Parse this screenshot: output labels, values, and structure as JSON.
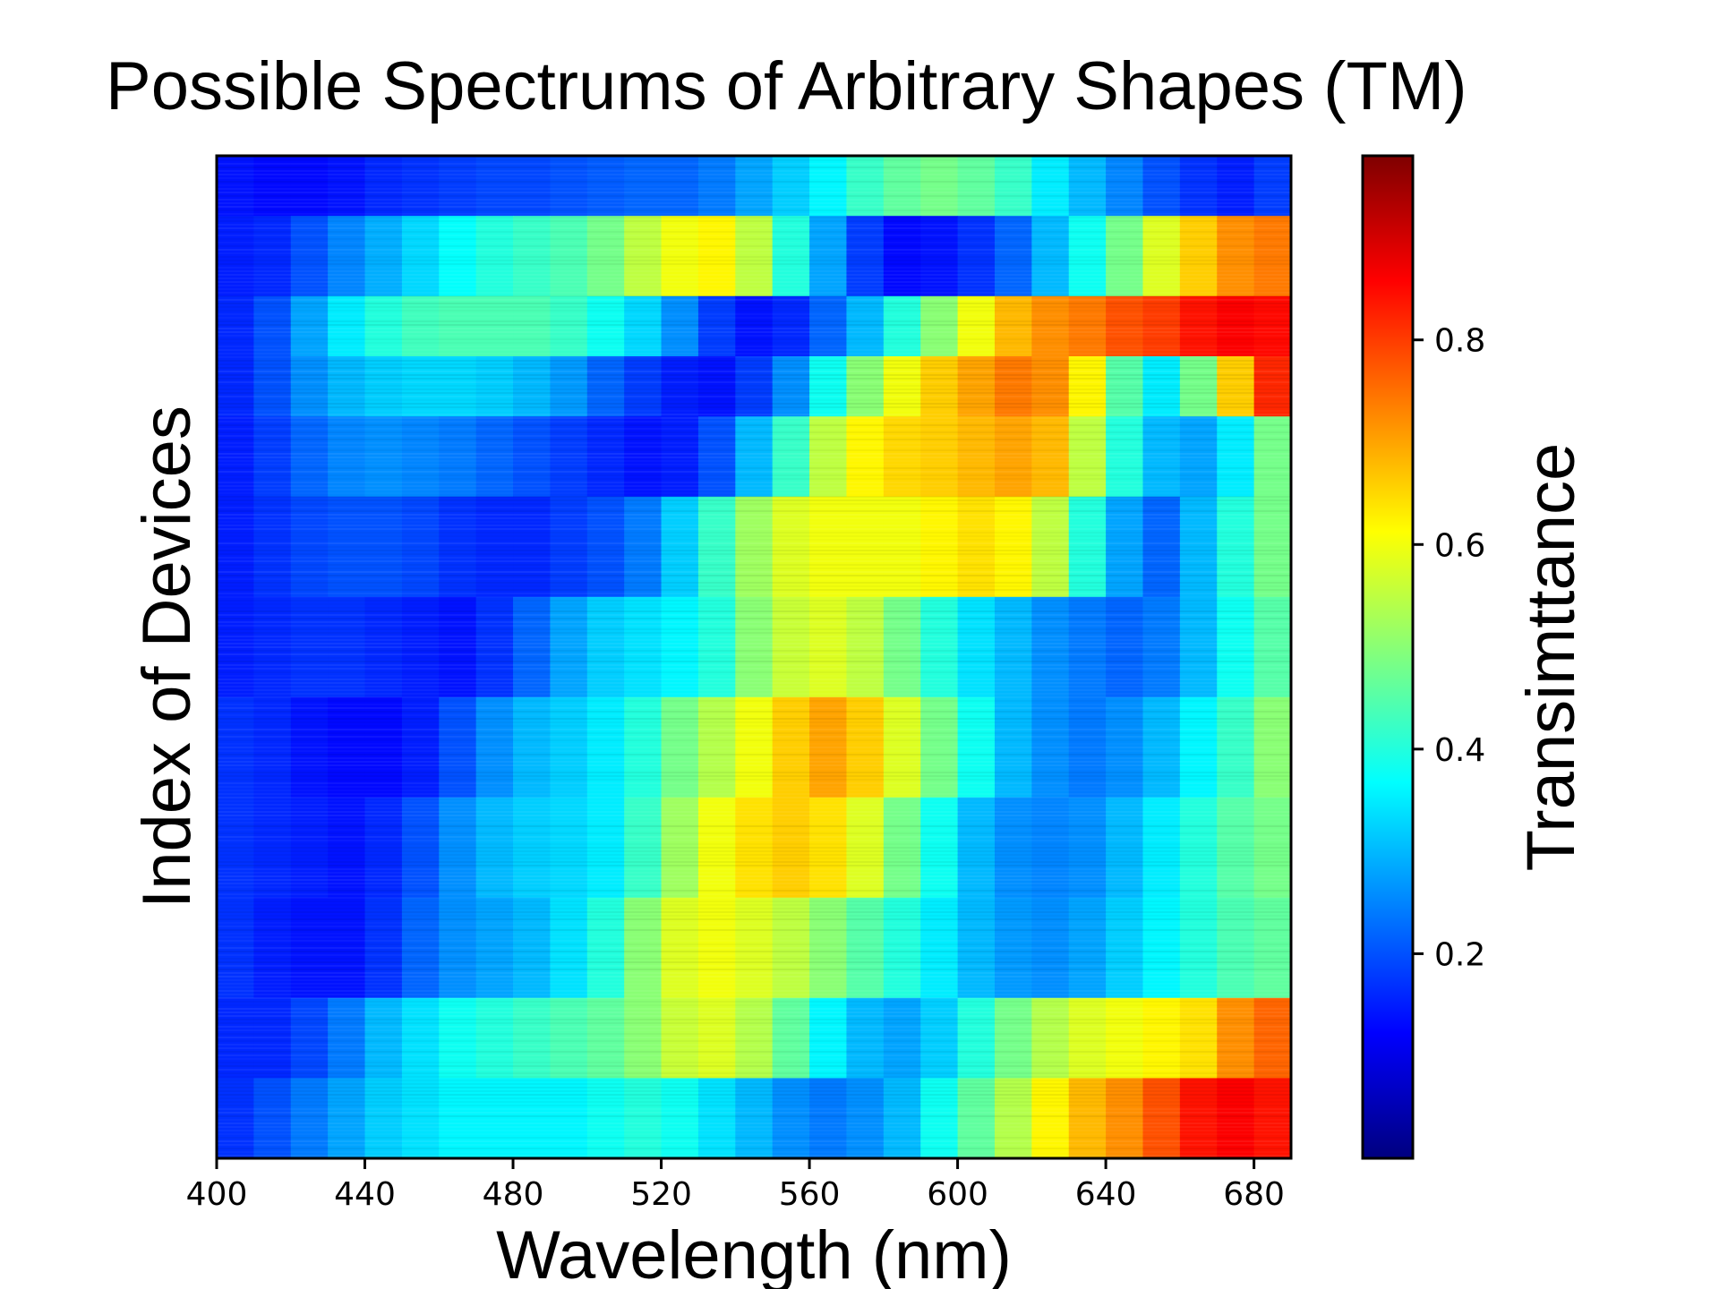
{
  "chart_data": {
    "type": "heatmap",
    "title": "Possible Spectrums of Arbitrary Shapes (TM)",
    "xlabel": "Wavelength (nm)",
    "ylabel": "Index of Devices",
    "colorbar_label": "Transimttance",
    "colormap": "jet",
    "x": [
      400,
      410,
      420,
      430,
      440,
      450,
      460,
      470,
      480,
      490,
      500,
      510,
      520,
      530,
      540,
      550,
      560,
      570,
      580,
      590,
      600,
      610,
      620,
      630,
      640,
      650,
      660,
      670,
      680
    ],
    "xlim": [
      400,
      690
    ],
    "xticks": [
      "400",
      "440",
      "480",
      "520",
      "560",
      "600",
      "640",
      "680"
    ],
    "colorbar_ticks": [
      "0.2",
      "0.4",
      "0.6",
      "0.8"
    ],
    "clim": [
      0,
      0.98
    ],
    "y_labels_shown": false,
    "bands": [
      {
        "rows": [
          0,
          3
        ],
        "values": [
          0.14,
          0.13,
          0.13,
          0.14,
          0.16,
          0.17,
          0.18,
          0.19,
          0.19,
          0.2,
          0.21,
          0.22,
          0.22,
          0.24,
          0.28,
          0.32,
          0.36,
          0.42,
          0.46,
          0.48,
          0.46,
          0.42,
          0.35,
          0.3,
          0.25,
          0.2,
          0.17,
          0.15,
          0.18
        ]
      },
      {
        "rows": [
          3,
          7
        ],
        "values": [
          0.15,
          0.16,
          0.2,
          0.25,
          0.29,
          0.33,
          0.37,
          0.4,
          0.42,
          0.44,
          0.48,
          0.55,
          0.6,
          0.62,
          0.55,
          0.4,
          0.28,
          0.18,
          0.13,
          0.14,
          0.17,
          0.22,
          0.3,
          0.38,
          0.48,
          0.58,
          0.66,
          0.72,
          0.74
        ]
      },
      {
        "rows": [
          7,
          10
        ],
        "values": [
          0.16,
          0.2,
          0.28,
          0.35,
          0.4,
          0.43,
          0.44,
          0.44,
          0.44,
          0.42,
          0.38,
          0.33,
          0.26,
          0.18,
          0.14,
          0.16,
          0.22,
          0.3,
          0.4,
          0.5,
          0.6,
          0.68,
          0.72,
          0.74,
          0.78,
          0.8,
          0.84,
          0.86,
          0.85
        ]
      },
      {
        "rows": [
          10,
          13
        ],
        "values": [
          0.16,
          0.2,
          0.26,
          0.3,
          0.32,
          0.33,
          0.33,
          0.32,
          0.3,
          0.27,
          0.22,
          0.18,
          0.15,
          0.14,
          0.18,
          0.26,
          0.38,
          0.5,
          0.6,
          0.66,
          0.7,
          0.74,
          0.72,
          0.62,
          0.45,
          0.35,
          0.48,
          0.66,
          0.82
        ]
      },
      {
        "rows": [
          13,
          17
        ],
        "values": [
          0.15,
          0.18,
          0.22,
          0.25,
          0.26,
          0.25,
          0.24,
          0.22,
          0.2,
          0.18,
          0.16,
          0.14,
          0.15,
          0.2,
          0.3,
          0.42,
          0.55,
          0.62,
          0.65,
          0.66,
          0.68,
          0.7,
          0.68,
          0.55,
          0.4,
          0.3,
          0.28,
          0.35,
          0.48
        ]
      },
      {
        "rows": [
          17,
          22
        ],
        "values": [
          0.15,
          0.17,
          0.19,
          0.2,
          0.2,
          0.19,
          0.17,
          0.16,
          0.16,
          0.18,
          0.2,
          0.24,
          0.32,
          0.42,
          0.52,
          0.58,
          0.6,
          0.6,
          0.6,
          0.62,
          0.64,
          0.62,
          0.55,
          0.4,
          0.28,
          0.22,
          0.3,
          0.4,
          0.48
        ]
      },
      {
        "rows": [
          22,
          27
        ],
        "values": [
          0.15,
          0.16,
          0.17,
          0.17,
          0.16,
          0.15,
          0.14,
          0.17,
          0.22,
          0.28,
          0.32,
          0.34,
          0.36,
          0.4,
          0.5,
          0.56,
          0.58,
          0.55,
          0.48,
          0.4,
          0.34,
          0.3,
          0.26,
          0.24,
          0.22,
          0.24,
          0.3,
          0.38,
          0.45
        ]
      },
      {
        "rows": [
          27,
          32
        ],
        "values": [
          0.17,
          0.16,
          0.14,
          0.13,
          0.13,
          0.15,
          0.2,
          0.26,
          0.3,
          0.32,
          0.35,
          0.4,
          0.48,
          0.54,
          0.6,
          0.66,
          0.7,
          0.66,
          0.58,
          0.48,
          0.38,
          0.3,
          0.26,
          0.24,
          0.26,
          0.3,
          0.36,
          0.42,
          0.5
        ]
      },
      {
        "rows": [
          32,
          37
        ],
        "values": [
          0.17,
          0.16,
          0.15,
          0.14,
          0.16,
          0.2,
          0.26,
          0.3,
          0.32,
          0.33,
          0.35,
          0.42,
          0.52,
          0.6,
          0.64,
          0.66,
          0.64,
          0.58,
          0.48,
          0.38,
          0.3,
          0.26,
          0.25,
          0.26,
          0.3,
          0.35,
          0.4,
          0.45,
          0.48
        ]
      },
      {
        "rows": [
          37,
          42
        ],
        "values": [
          0.17,
          0.15,
          0.14,
          0.14,
          0.17,
          0.22,
          0.26,
          0.28,
          0.3,
          0.34,
          0.4,
          0.5,
          0.58,
          0.6,
          0.58,
          0.55,
          0.5,
          0.45,
          0.4,
          0.35,
          0.3,
          0.27,
          0.26,
          0.28,
          0.32,
          0.36,
          0.4,
          0.44,
          0.46
        ]
      },
      {
        "rows": [
          42,
          46
        ],
        "values": [
          0.16,
          0.16,
          0.19,
          0.24,
          0.3,
          0.34,
          0.38,
          0.4,
          0.42,
          0.44,
          0.46,
          0.5,
          0.56,
          0.58,
          0.54,
          0.46,
          0.36,
          0.3,
          0.28,
          0.32,
          0.4,
          0.48,
          0.54,
          0.58,
          0.6,
          0.62,
          0.64,
          0.72,
          0.76
        ]
      },
      {
        "rows": [
          46,
          50
        ],
        "values": [
          0.17,
          0.2,
          0.24,
          0.28,
          0.32,
          0.34,
          0.36,
          0.36,
          0.36,
          0.36,
          0.38,
          0.4,
          0.38,
          0.34,
          0.3,
          0.26,
          0.24,
          0.26,
          0.3,
          0.38,
          0.46,
          0.54,
          0.62,
          0.68,
          0.72,
          0.78,
          0.84,
          0.86,
          0.84
        ]
      }
    ]
  }
}
